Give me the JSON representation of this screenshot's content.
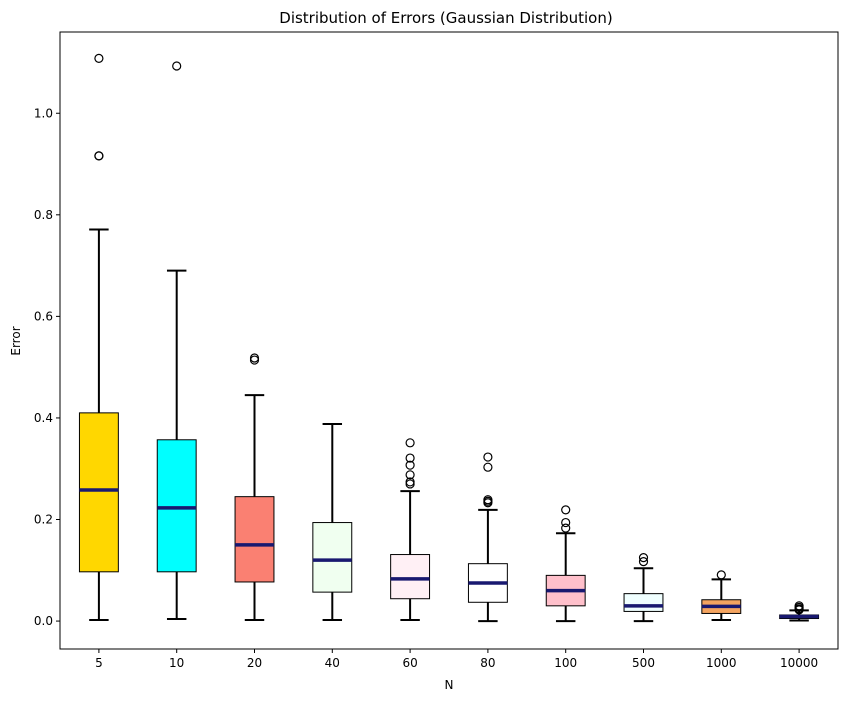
{
  "chart_data": {
    "type": "box",
    "title": "Distribution of Errors (Gaussian Distribution)",
    "xlabel": "N",
    "ylabel": "Error",
    "ylim": [
      -0.055,
      1.16
    ],
    "yticks": [
      0.0,
      0.2,
      0.4,
      0.6,
      0.8,
      1.0
    ],
    "ytick_labels": [
      "0.0",
      "0.2",
      "0.4",
      "0.6",
      "0.8",
      "1.0"
    ],
    "median_color": "#191970",
    "grid": false,
    "legend": "none",
    "categories": [
      "5",
      "10",
      "20",
      "40",
      "60",
      "80",
      "100",
      "500",
      "1000",
      "10000"
    ],
    "boxes": [
      {
        "label": "5",
        "color": "#FFD700",
        "whisker_low": 0.002,
        "q1": 0.097,
        "median": 0.258,
        "q3": 0.41,
        "whisker_high": 0.771,
        "outliers": [
          1.108,
          0.916,
          0.916
        ]
      },
      {
        "label": "10",
        "color": "#00FFFF",
        "whisker_low": 0.004,
        "q1": 0.097,
        "median": 0.223,
        "q3": 0.357,
        "whisker_high": 0.69,
        "outliers": [
          1.093
        ]
      },
      {
        "label": "20",
        "color": "#FA8072",
        "whisker_low": 0.002,
        "q1": 0.077,
        "median": 0.15,
        "q3": 0.245,
        "whisker_high": 0.445,
        "outliers": [
          0.518,
          0.514
        ]
      },
      {
        "label": "40",
        "color": "#F0FFF0",
        "whisker_low": 0.002,
        "q1": 0.057,
        "median": 0.12,
        "q3": 0.194,
        "whisker_high": 0.388,
        "outliers": []
      },
      {
        "label": "60",
        "color": "#FFF0F5",
        "whisker_low": 0.002,
        "q1": 0.044,
        "median": 0.083,
        "q3": 0.131,
        "whisker_high": 0.256,
        "outliers": [
          0.351,
          0.321,
          0.307,
          0.288,
          0.274,
          0.27
        ]
      },
      {
        "label": "80",
        "color": "#FFFFFF",
        "whisker_low": 0.0,
        "q1": 0.037,
        "median": 0.075,
        "q3": 0.113,
        "whisker_high": 0.219,
        "outliers": [
          0.323,
          0.303,
          0.239,
          0.236,
          0.233
        ]
      },
      {
        "label": "100",
        "color": "#FFC0CB",
        "whisker_low": 0.0,
        "q1": 0.03,
        "median": 0.06,
        "q3": 0.09,
        "whisker_high": 0.173,
        "outliers": [
          0.219,
          0.194,
          0.183
        ]
      },
      {
        "label": "500",
        "color": "#F0FFFF",
        "whisker_low": 0.0,
        "q1": 0.019,
        "median": 0.03,
        "q3": 0.054,
        "whisker_high": 0.104,
        "outliers": [
          0.125,
          0.117
        ]
      },
      {
        "label": "1000",
        "color": "#F4A460",
        "whisker_low": 0.002,
        "q1": 0.015,
        "median": 0.029,
        "q3": 0.042,
        "whisker_high": 0.082,
        "outliers": [
          0.091
        ]
      },
      {
        "label": "10000",
        "color": "#4682B4",
        "whisker_low": 0.001,
        "q1": 0.005,
        "median": 0.009,
        "q3": 0.012,
        "whisker_high": 0.021,
        "outliers": [
          0.03,
          0.027,
          0.024,
          0.022
        ]
      }
    ]
  }
}
